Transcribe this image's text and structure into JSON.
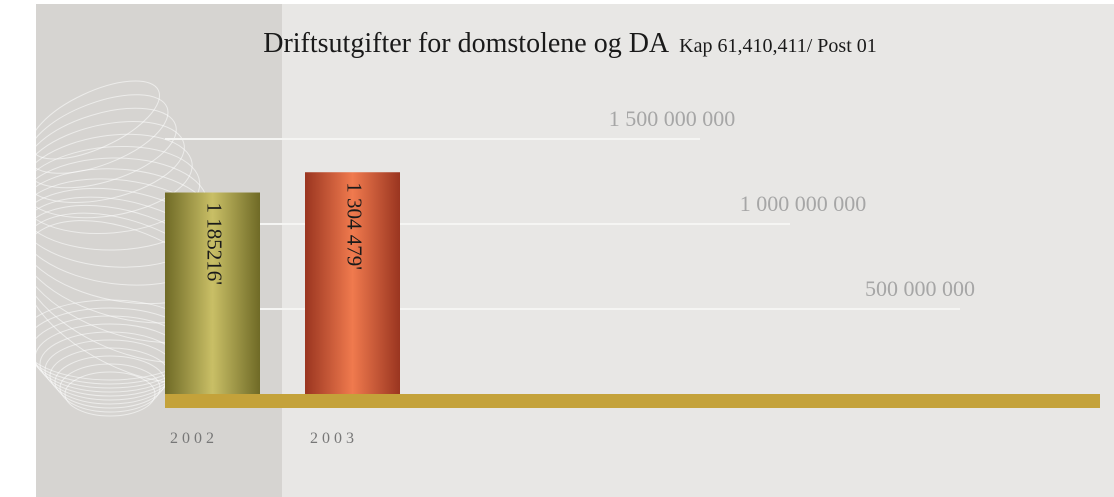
{
  "chart_data": {
    "type": "bar",
    "title": {
      "main": "Driftsutgifter for domstolene og DA",
      "sub": "Kap 61,410,411/ Post 01"
    },
    "categories": [
      "2 0 0 2",
      "2 0 0 3"
    ],
    "values": [
      1185216000,
      1304479000
    ],
    "data_labels": [
      "1 185216'",
      "1 304 479'"
    ],
    "y_tick_values": [
      500000000,
      1000000000,
      1500000000
    ],
    "y_tick_labels": [
      "500 000 000",
      "1 000 000 000",
      "1 500 000 000"
    ],
    "ylim": [
      0,
      2000000000
    ],
    "grid": true,
    "legend": "none",
    "colors": {
      "bar_2002": "#a9a04a",
      "bar_2003": "#e06a3f",
      "baseline": "#c4a23a",
      "gridline": "#f5f5f3",
      "panel": "#e8e7e5",
      "backdrop": "#d6d4d1",
      "tick_text": "#a6a6a6",
      "category_text": "#777777",
      "title_text": "#1a1a1a"
    }
  }
}
